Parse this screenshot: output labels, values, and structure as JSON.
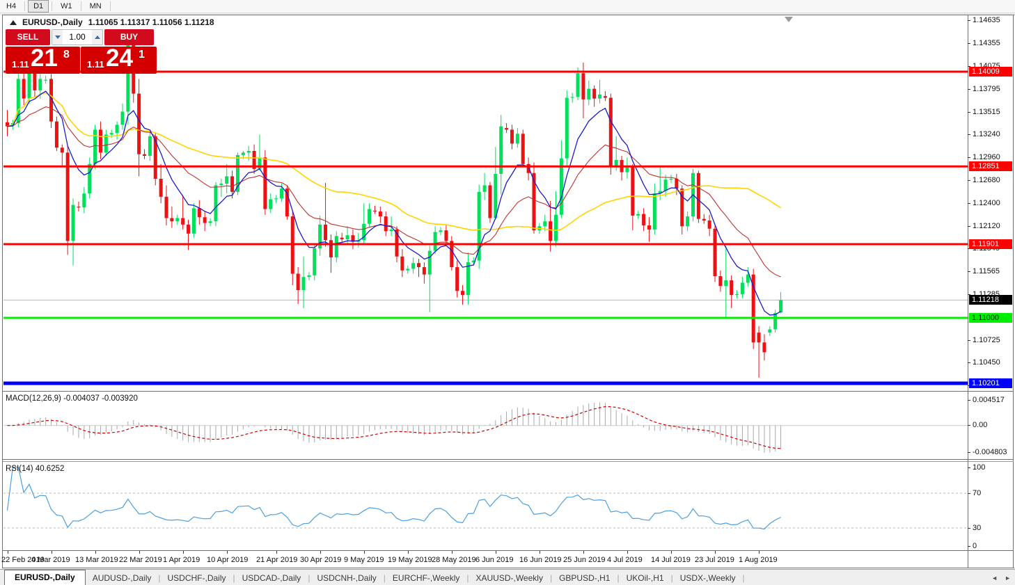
{
  "toolbar": {
    "timeframes": [
      "H4",
      "D1",
      "W1",
      "MN"
    ],
    "active_timeframe": "D1"
  },
  "chart": {
    "symbol_label": "EURUSD-,Daily",
    "ohlc_label": "1.11065 1.11317 1.11056 1.11218",
    "trade_panel": {
      "sell_label": "SELL",
      "buy_label": "BUY",
      "volume": "1.00",
      "sell_price_small": "1.11",
      "sell_price_big": "21",
      "sell_price_sup": "8",
      "buy_price_small": "1.11",
      "buy_price_big": "24",
      "buy_price_sup": "1"
    },
    "colors": {
      "bull": "#00e05a",
      "bear": "#ee1111",
      "ma_fast": "#1a1acd",
      "ma_mid": "#c03030",
      "ma_slow": "#ffd400",
      "level_red": "#ff0000",
      "level_green": "#00ee00",
      "level_blue": "#0000ff",
      "current_line": "#b4b4b4",
      "macd_hist": "#a8a8a8",
      "macd_signal": "#cc0000",
      "rsi_line": "#4aa0e0"
    },
    "levels": [
      {
        "value": 1.14009,
        "label": "1.14009",
        "color": "#ff0000",
        "text": "#ffffff",
        "thickness": 3
      },
      {
        "value": 1.12851,
        "label": "1.12851",
        "color": "#ff0000",
        "text": "#ffffff",
        "thickness": 3
      },
      {
        "value": 1.11901,
        "label": "1.11901",
        "color": "#ff0000",
        "text": "#ffffff",
        "thickness": 3
      },
      {
        "value": 1.11,
        "label": "1.11000",
        "color": "#00ee00",
        "text": "#000000",
        "thickness": 3
      },
      {
        "value": 1.10201,
        "label": "1.10201",
        "color": "#0000ff",
        "text": "#ffffff",
        "thickness": 5
      }
    ],
    "current_price": {
      "value": 1.11218,
      "label": "1.11218"
    },
    "price_ticks": [
      "1.14635",
      "1.14355",
      "1.14075",
      "1.13795",
      "1.13515",
      "1.13240",
      "1.12960",
      "1.12680",
      "1.12400",
      "1.12120",
      "1.11845",
      "1.11565",
      "1.11285",
      "1.10725",
      "1.10450",
      "1.10170"
    ],
    "date_labels": [
      {
        "i": 0,
        "t": "22 Feb 2019"
      },
      {
        "i": 8,
        "t": "4 Mar 2019"
      },
      {
        "i": 16,
        "t": "13 Mar 2019"
      },
      {
        "i": 24,
        "t": "22 Mar 2019"
      },
      {
        "i": 32,
        "t": "1 Apr 2019"
      },
      {
        "i": 40,
        "t": "10 Apr 2019"
      },
      {
        "i": 49,
        "t": "21 Apr 2019"
      },
      {
        "i": 57,
        "t": "30 Apr 2019"
      },
      {
        "i": 65,
        "t": "9 May 2019"
      },
      {
        "i": 73,
        "t": "19 May 2019"
      },
      {
        "i": 81,
        "t": "28 May 2019"
      },
      {
        "i": 89,
        "t": "6 Jun 2019"
      },
      {
        "i": 97,
        "t": "16 Jun 2019"
      },
      {
        "i": 105,
        "t": "25 Jun 2019"
      },
      {
        "i": 113,
        "t": "4 Jul 2019"
      },
      {
        "i": 121,
        "t": "14 Jul 2019"
      },
      {
        "i": 129,
        "t": "23 Jul 2019"
      },
      {
        "i": 137,
        "t": "1 Aug 2019"
      }
    ],
    "candles": [
      [
        1.1339,
        1.1354,
        1.1322,
        1.1334
      ],
      [
        1.1336,
        1.1342,
        1.133,
        1.1338
      ],
      [
        1.1338,
        1.14,
        1.1333,
        1.1392
      ],
      [
        1.1392,
        1.142,
        1.136,
        1.1368
      ],
      [
        1.1368,
        1.1415,
        1.1362,
        1.1408
      ],
      [
        1.1408,
        1.1412,
        1.137,
        1.1378
      ],
      [
        1.1378,
        1.1398,
        1.1368,
        1.1392
      ],
      [
        1.139,
        1.1396,
        1.1386,
        1.1391
      ],
      [
        1.1392,
        1.1398,
        1.1332,
        1.134
      ],
      [
        1.134,
        1.1346,
        1.1304,
        1.1308
      ],
      [
        1.1308,
        1.1312,
        1.1285,
        1.1302
      ],
      [
        1.1302,
        1.131,
        1.1177,
        1.1194
      ],
      [
        1.1194,
        1.1246,
        1.1164,
        1.1238
      ],
      [
        1.1236,
        1.1242,
        1.123,
        1.1235
      ],
      [
        1.1235,
        1.126,
        1.1228,
        1.1252
      ],
      [
        1.1252,
        1.1296,
        1.1246,
        1.1288
      ],
      [
        1.1288,
        1.1336,
        1.1282,
        1.133
      ],
      [
        1.133,
        1.134,
        1.1294,
        1.1302
      ],
      [
        1.1302,
        1.133,
        1.1298,
        1.1324
      ],
      [
        1.1324,
        1.133,
        1.132,
        1.1326
      ],
      [
        1.1326,
        1.134,
        1.1318,
        1.1336
      ],
      [
        1.1336,
        1.1362,
        1.133,
        1.1352
      ],
      [
        1.1352,
        1.1448,
        1.1336,
        1.144
      ],
      [
        1.144,
        1.1444,
        1.1363,
        1.1374
      ],
      [
        1.1374,
        1.1392,
        1.1273,
        1.13
      ],
      [
        1.13,
        1.1306,
        1.1294,
        1.1298
      ],
      [
        1.1298,
        1.133,
        1.1292,
        1.1322
      ],
      [
        1.1322,
        1.1326,
        1.1262,
        1.127
      ],
      [
        1.127,
        1.1288,
        1.124,
        1.1248
      ],
      [
        1.1248,
        1.1262,
        1.1213,
        1.1222
      ],
      [
        1.1222,
        1.1236,
        1.121,
        1.1218
      ],
      [
        1.1218,
        1.1226,
        1.1214,
        1.1222
      ],
      [
        1.1222,
        1.125,
        1.1208,
        1.1214
      ],
      [
        1.1214,
        1.122,
        1.1183,
        1.1203
      ],
      [
        1.1203,
        1.124,
        1.1198,
        1.1234
      ],
      [
        1.1234,
        1.1244,
        1.1214,
        1.1223
      ],
      [
        1.1223,
        1.123,
        1.1206,
        1.1216
      ],
      [
        1.1216,
        1.1222,
        1.1212,
        1.1218
      ],
      [
        1.1218,
        1.1266,
        1.1212,
        1.1262
      ],
      [
        1.1262,
        1.127,
        1.1248,
        1.1264
      ],
      [
        1.1264,
        1.1288,
        1.1252,
        1.1273
      ],
      [
        1.1273,
        1.128,
        1.1246,
        1.1254
      ],
      [
        1.1254,
        1.1302,
        1.125,
        1.1299
      ],
      [
        1.1299,
        1.1304,
        1.1294,
        1.1302
      ],
      [
        1.1302,
        1.131,
        1.1292,
        1.1304
      ],
      [
        1.1304,
        1.1312,
        1.1276,
        1.1282
      ],
      [
        1.1282,
        1.1324,
        1.128,
        1.1296
      ],
      [
        1.1296,
        1.1305,
        1.1226,
        1.1233
      ],
      [
        1.1233,
        1.1252,
        1.1228,
        1.1245
      ],
      [
        1.1245,
        1.125,
        1.124,
        1.1246
      ],
      [
        1.1246,
        1.1264,
        1.1242,
        1.1258
      ],
      [
        1.1258,
        1.1262,
        1.122,
        1.1224
      ],
      [
        1.1224,
        1.123,
        1.114,
        1.1154
      ],
      [
        1.1154,
        1.1162,
        1.1117,
        1.1134
      ],
      [
        1.1134,
        1.1175,
        1.1112,
        1.115
      ],
      [
        1.115,
        1.1156,
        1.1146,
        1.1152
      ],
      [
        1.1152,
        1.119,
        1.1146,
        1.1185
      ],
      [
        1.1185,
        1.1225,
        1.1176,
        1.1214
      ],
      [
        1.1214,
        1.1265,
        1.1187,
        1.1195
      ],
      [
        1.1195,
        1.1202,
        1.1155,
        1.1174
      ],
      [
        1.1174,
        1.1206,
        1.1168,
        1.12
      ],
      [
        1.1198,
        1.1204,
        1.1192,
        1.1196
      ],
      [
        1.1196,
        1.1212,
        1.119,
        1.1201
      ],
      [
        1.1201,
        1.1208,
        1.1184,
        1.1193
      ],
      [
        1.1193,
        1.1204,
        1.1186,
        1.1195
      ],
      [
        1.1195,
        1.124,
        1.119,
        1.1215
      ],
      [
        1.1215,
        1.124,
        1.121,
        1.1233
      ],
      [
        1.1231,
        1.1237,
        1.1227,
        1.123
      ],
      [
        1.123,
        1.1236,
        1.1216,
        1.1224
      ],
      [
        1.1224,
        1.123,
        1.12,
        1.1206
      ],
      [
        1.1206,
        1.1224,
        1.12,
        1.1208
      ],
      [
        1.1208,
        1.1212,
        1.1168,
        1.1175
      ],
      [
        1.1175,
        1.1184,
        1.115,
        1.1158
      ],
      [
        1.1158,
        1.1164,
        1.1154,
        1.116
      ],
      [
        1.116,
        1.1174,
        1.1154,
        1.1167
      ],
      [
        1.1167,
        1.1172,
        1.115,
        1.1162
      ],
      [
        1.1162,
        1.1168,
        1.1142,
        1.1153
      ],
      [
        1.1153,
        1.1188,
        1.1107,
        1.1182
      ],
      [
        1.1182,
        1.1212,
        1.1178,
        1.1205
      ],
      [
        1.1205,
        1.1211,
        1.1201,
        1.1207
      ],
      [
        1.1207,
        1.1214,
        1.1188,
        1.1194
      ],
      [
        1.1194,
        1.12,
        1.1158,
        1.1162
      ],
      [
        1.1162,
        1.117,
        1.1125,
        1.1133
      ],
      [
        1.1133,
        1.114,
        1.1116,
        1.1128
      ],
      [
        1.1128,
        1.118,
        1.1116,
        1.1168
      ],
      [
        1.1168,
        1.1174,
        1.1164,
        1.117
      ],
      [
        1.117,
        1.1263,
        1.116,
        1.1254
      ],
      [
        1.1254,
        1.1277,
        1.1244,
        1.1262
      ],
      [
        1.1262,
        1.1266,
        1.1216,
        1.1222
      ],
      [
        1.1222,
        1.1309,
        1.122,
        1.1276
      ],
      [
        1.1276,
        1.1348,
        1.1251,
        1.1334
      ],
      [
        1.1332,
        1.1338,
        1.1326,
        1.133
      ],
      [
        1.133,
        1.1336,
        1.1306,
        1.1313
      ],
      [
        1.1313,
        1.1332,
        1.1308,
        1.1325
      ],
      [
        1.1325,
        1.133,
        1.1284,
        1.1288
      ],
      [
        1.1288,
        1.1296,
        1.1268,
        1.1277
      ],
      [
        1.1277,
        1.129,
        1.1203,
        1.1207
      ],
      [
        1.1207,
        1.1216,
        1.1203,
        1.1212
      ],
      [
        1.1212,
        1.1226,
        1.1206,
        1.1218
      ],
      [
        1.1218,
        1.1243,
        1.1181,
        1.1194
      ],
      [
        1.1194,
        1.1255,
        1.1187,
        1.1226
      ],
      [
        1.1226,
        1.1317,
        1.1222,
        1.1295
      ],
      [
        1.1295,
        1.1378,
        1.1285,
        1.1369
      ],
      [
        1.1369,
        1.1375,
        1.1363,
        1.137
      ],
      [
        1.137,
        1.1406,
        1.1366,
        1.1399
      ],
      [
        1.1399,
        1.1412,
        1.1344,
        1.1367
      ],
      [
        1.1367,
        1.139,
        1.136,
        1.138
      ],
      [
        1.138,
        1.1384,
        1.1358,
        1.1368
      ],
      [
        1.1368,
        1.1391,
        1.1362,
        1.1373
      ],
      [
        1.1371,
        1.1377,
        1.1365,
        1.1369
      ],
      [
        1.1369,
        1.1374,
        1.1275,
        1.1285
      ],
      [
        1.1285,
        1.1322,
        1.128,
        1.1293
      ],
      [
        1.1293,
        1.1298,
        1.1268,
        1.1278
      ],
      [
        1.1278,
        1.1296,
        1.127,
        1.1284
      ],
      [
        1.1284,
        1.1288,
        1.1207,
        1.1225
      ],
      [
        1.1225,
        1.1231,
        1.1221,
        1.1227
      ],
      [
        1.1227,
        1.1234,
        1.1206,
        1.1213
      ],
      [
        1.1213,
        1.1223,
        1.1193,
        1.1208
      ],
      [
        1.1208,
        1.1264,
        1.1202,
        1.1252
      ],
      [
        1.1252,
        1.1286,
        1.1244,
        1.1255
      ],
      [
        1.1255,
        1.1275,
        1.1248,
        1.1269
      ],
      [
        1.1269,
        1.1275,
        1.1265,
        1.127
      ],
      [
        1.127,
        1.1276,
        1.125,
        1.1258
      ],
      [
        1.1258,
        1.1262,
        1.1202,
        1.1212
      ],
      [
        1.1212,
        1.123,
        1.1206,
        1.1224
      ],
      [
        1.1224,
        1.1282,
        1.1218,
        1.1277
      ],
      [
        1.1277,
        1.128,
        1.1216,
        1.1221
      ],
      [
        1.1221,
        1.1227,
        1.1215,
        1.1219
      ],
      [
        1.1219,
        1.1226,
        1.12,
        1.1209
      ],
      [
        1.1209,
        1.1214,
        1.1144,
        1.1151
      ],
      [
        1.1151,
        1.1158,
        1.1132,
        1.1139
      ],
      [
        1.1139,
        1.1188,
        1.1101,
        1.1146
      ],
      [
        1.1146,
        1.1152,
        1.1112,
        1.1128
      ],
      [
        1.1128,
        1.1134,
        1.1124,
        1.1129
      ],
      [
        1.1129,
        1.115,
        1.1124,
        1.1143
      ],
      [
        1.1143,
        1.1162,
        1.1138,
        1.1153
      ],
      [
        1.1153,
        1.116,
        1.1062,
        1.107
      ],
      [
        1.1082,
        1.109,
        1.1027,
        1.107
      ],
      [
        1.107,
        1.108,
        1.1048,
        1.1058
      ],
      [
        1.1082,
        1.109,
        1.1078,
        1.1086
      ],
      [
        1.1086,
        1.111,
        1.1082,
        1.1106
      ],
      [
        1.11065,
        1.11317,
        1.11056,
        1.11218
      ]
    ]
  },
  "macd": {
    "label": "MACD(12,26,9) -0.004037 -0.003920",
    "fast": 12,
    "slow": 26,
    "signal": 9,
    "axis": [
      {
        "v": 0.004517,
        "t": "0.004517"
      },
      {
        "v": 0.0,
        "t": "0.00"
      },
      {
        "v": -0.004803,
        "t": "-0.004803"
      }
    ]
  },
  "rsi": {
    "label": "RSI(14) 40.6252",
    "period": 14,
    "axis": [
      {
        "v": 100,
        "t": "100"
      },
      {
        "v": 70,
        "t": "70"
      },
      {
        "v": 30,
        "t": "30"
      },
      {
        "v": 0,
        "t": "0"
      }
    ]
  },
  "tabs": {
    "active_index": 0,
    "items": [
      "EURUSD-,Daily",
      "AUDUSD-,Daily",
      "USDCHF-,Daily",
      "USDCAD-,Daily",
      "USDCNH-,Daily",
      "EURCHF-,Weekly",
      "XAUUSD-,Weekly",
      "GBPUSD-,H1",
      "UKOil-,H1",
      "USDX-,Weekly"
    ]
  }
}
